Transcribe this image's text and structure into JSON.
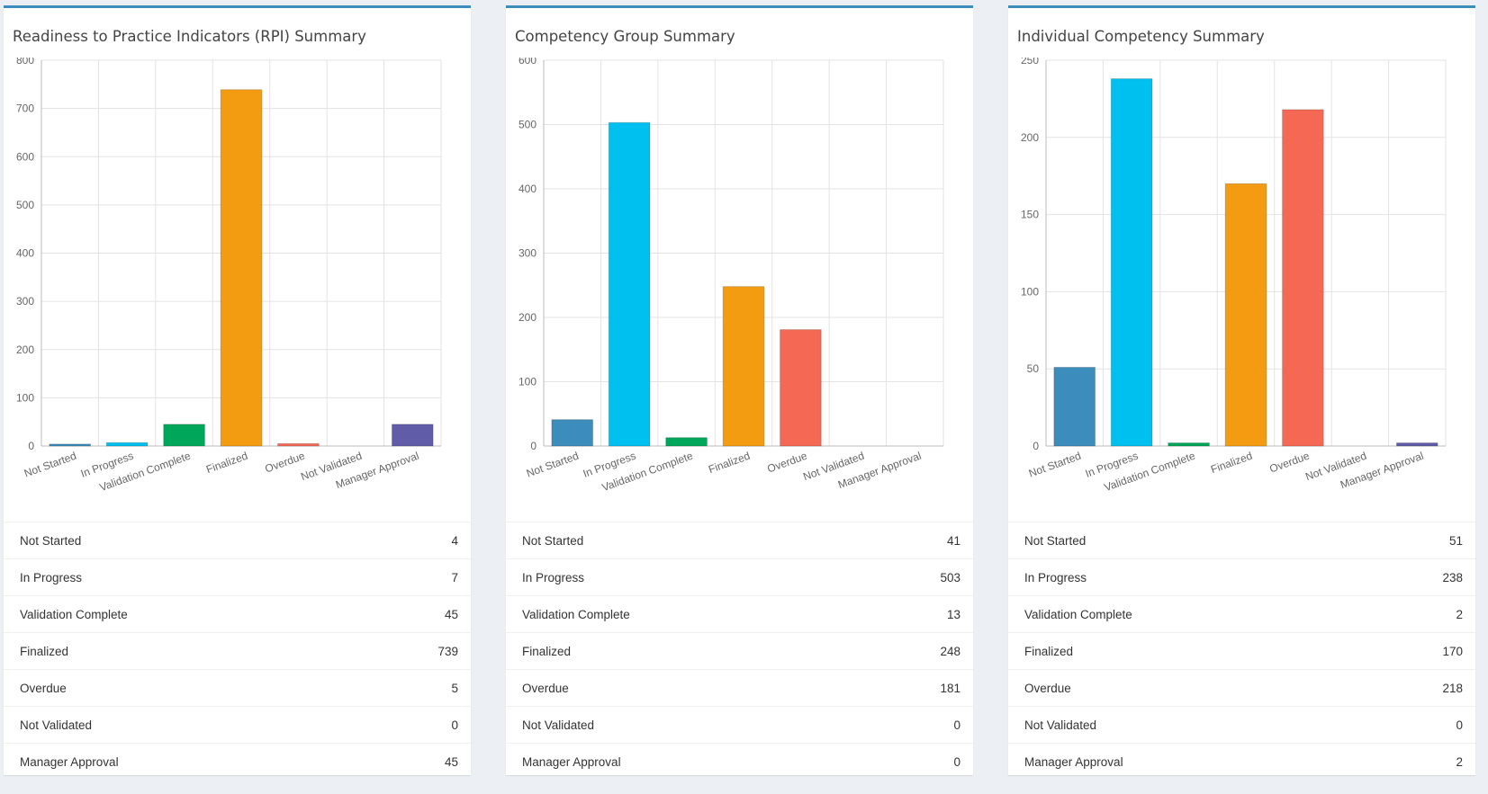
{
  "categories": [
    "Not Started",
    "In Progress",
    "Validation Complete",
    "Finalized",
    "Overdue",
    "Not Validated",
    "Manager Approval"
  ],
  "colors": [
    "#3c8dbc",
    "#00c0ef",
    "#00a65a",
    "#f39c12",
    "#f56954",
    "#d2d6de",
    "#605ca8"
  ],
  "panels": [
    {
      "title": "Readiness to Practice Indicators (RPI) Summary",
      "counts": [
        "4",
        "7",
        "45",
        "739",
        "5",
        "0",
        "45"
      ]
    },
    {
      "title": "Competency Group Summary",
      "counts": [
        "41",
        "503",
        "13",
        "248",
        "181",
        "0",
        "0"
      ]
    },
    {
      "title": "Individual Competency Summary",
      "counts": [
        "51",
        "238",
        "2",
        "170",
        "218",
        "0",
        "2"
      ]
    }
  ],
  "chart_data": [
    {
      "type": "bar",
      "title": "Readiness to Practice Indicators (RPI) Summary",
      "categories": [
        "Not Started",
        "In Progress",
        "Validation Complete",
        "Finalized",
        "Overdue",
        "Not Validated",
        "Manager Approval"
      ],
      "values": [
        4,
        7,
        45,
        739,
        5,
        0,
        45
      ],
      "ylim": [
        0,
        800
      ],
      "yticks": [
        0,
        100,
        200,
        300,
        400,
        500,
        600,
        700,
        800
      ]
    },
    {
      "type": "bar",
      "title": "Competency Group Summary",
      "categories": [
        "Not Started",
        "In Progress",
        "Validation Complete",
        "Finalized",
        "Overdue",
        "Not Validated",
        "Manager Approval"
      ],
      "values": [
        41,
        503,
        13,
        248,
        181,
        0,
        0
      ],
      "ylim": [
        0,
        600
      ],
      "yticks": [
        0,
        100,
        200,
        300,
        400,
        500,
        600
      ]
    },
    {
      "type": "bar",
      "title": "Individual Competency Summary",
      "categories": [
        "Not Started",
        "In Progress",
        "Validation Complete",
        "Finalized",
        "Overdue",
        "Not Validated",
        "Manager Approval"
      ],
      "values": [
        51,
        238,
        2,
        170,
        218,
        0,
        2
      ],
      "ylim": [
        0,
        250
      ],
      "yticks": [
        0,
        50,
        100,
        150,
        200,
        250
      ]
    }
  ]
}
